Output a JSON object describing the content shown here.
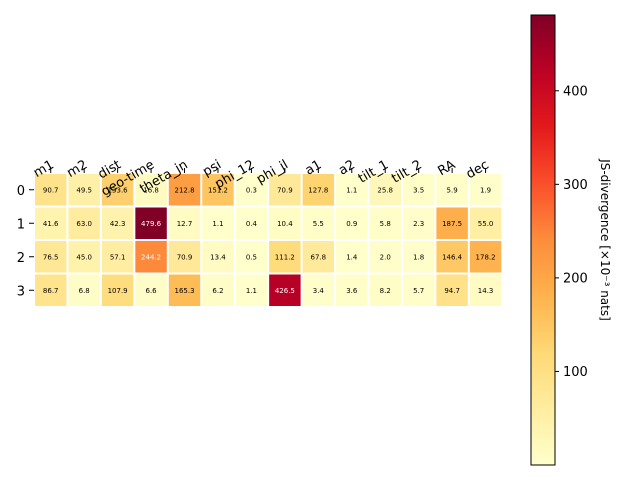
{
  "chart_data": {
    "type": "heatmap",
    "rows": [
      "0",
      "1",
      "2",
      "3"
    ],
    "columns": [
      "m1",
      "m2",
      "dist",
      "geo-time",
      "theta_jn",
      "psi",
      "phi_12",
      "phi_jl",
      "a1",
      "a2",
      "tilt_1",
      "tilt_2",
      "RA",
      "dec"
    ],
    "values": [
      [
        90.7,
        49.5,
        133.6,
        16.8,
        212.8,
        151.2,
        0.3,
        70.9,
        127.8,
        1.1,
        25.8,
        3.5,
        5.9,
        1.9
      ],
      [
        41.6,
        63.0,
        42.3,
        479.6,
        12.7,
        1.1,
        0.4,
        10.4,
        5.5,
        0.9,
        5.8,
        2.3,
        187.5,
        55.0
      ],
      [
        76.5,
        45.0,
        57.1,
        244.2,
        70.9,
        13.4,
        0.5,
        111.2,
        67.8,
        1.4,
        2.0,
        1.8,
        146.4,
        178.2
      ],
      [
        86.7,
        6.8,
        107.9,
        6.6,
        165.3,
        6.2,
        1.1,
        426.5,
        3.4,
        3.6,
        8.2,
        5.7,
        94.7,
        14.3
      ]
    ],
    "colormap": "YlOrRd",
    "vmin": 0,
    "vmax": 481,
    "colorbar": {
      "label": "JS-divergence [×10⁻³ nats]",
      "ticks": [
        100,
        200,
        300,
        400
      ]
    }
  }
}
